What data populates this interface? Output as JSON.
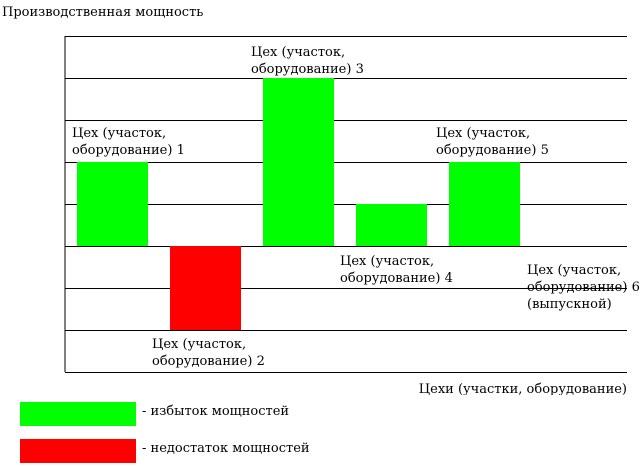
{
  "chart_data": {
    "type": "bar",
    "ylabel": "Производственная мощность",
    "xlabel": "Цехи (участки, оборудование)",
    "grid": true,
    "ylim": [
      -2,
      5
    ],
    "categories": [
      [
        "Цех (участок,",
        "оборудование) 1"
      ],
      [
        "Цех (участок,",
        "оборудование) 2"
      ],
      [
        "Цех (участок,",
        "оборудование) 3"
      ],
      [
        "Цех (участок,",
        "оборудование) 4"
      ],
      [
        "Цех (участок,",
        "оборудование) 5"
      ],
      [
        "Цех (участок,",
        "оборудование) 6",
        "(выпускной)"
      ]
    ],
    "values": [
      2,
      -2,
      4,
      1,
      2,
      0
    ],
    "colors": {
      "surplus": "#00ff00",
      "deficit": "#ff0000"
    }
  },
  "legend": {
    "surplus_label": "- избыток мощностей",
    "deficit_label": "- недостаток мощностей"
  }
}
